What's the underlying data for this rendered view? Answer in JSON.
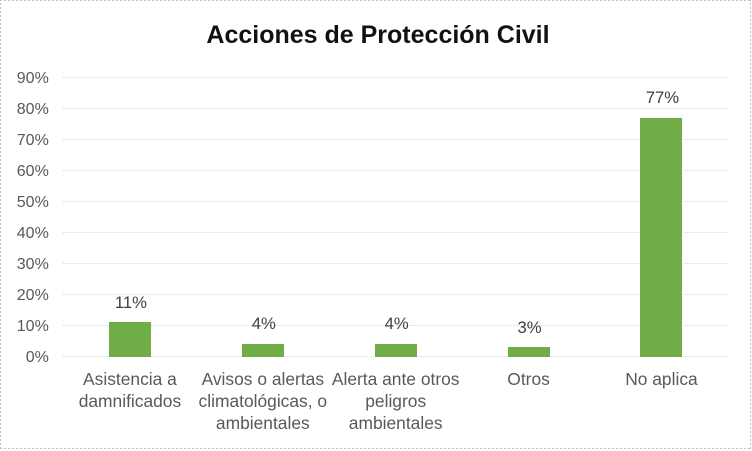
{
  "chart_data": {
    "type": "bar",
    "title": "Acciones de Protección Civil",
    "categories": [
      "Asistencia a damnificados",
      "Avisos o alertas climatológicas, o ambientales",
      "Alerta ante otros peligros ambientales",
      "Otros",
      "No aplica"
    ],
    "category_lines": [
      [
        "Asistencia a",
        "damnificados"
      ],
      [
        "Avisos o alertas",
        "climatológicas, o",
        "ambientales"
      ],
      [
        "Alerta ante otros",
        "peligros",
        "ambientales"
      ],
      [
        "Otros"
      ],
      [
        "No aplica"
      ]
    ],
    "values": [
      11,
      4,
      4,
      3,
      77
    ],
    "data_labels": [
      "11%",
      "4%",
      "4%",
      "3%",
      "77%"
    ],
    "y_ticks": [
      "0%",
      "10%",
      "20%",
      "30%",
      "40%",
      "50%",
      "60%",
      "70%",
      "80%",
      "90%"
    ],
    "ylim": [
      0,
      90
    ],
    "xlabel": "",
    "ylabel": "",
    "grid": true,
    "legend_position": "none",
    "colors": {
      "bar": "#70AD47",
      "gridline": "#d9d9d9",
      "axis_labels": "#595959",
      "data_labels": "#404040",
      "title": "#111111",
      "frame_border": "#c2c2c2"
    }
  }
}
